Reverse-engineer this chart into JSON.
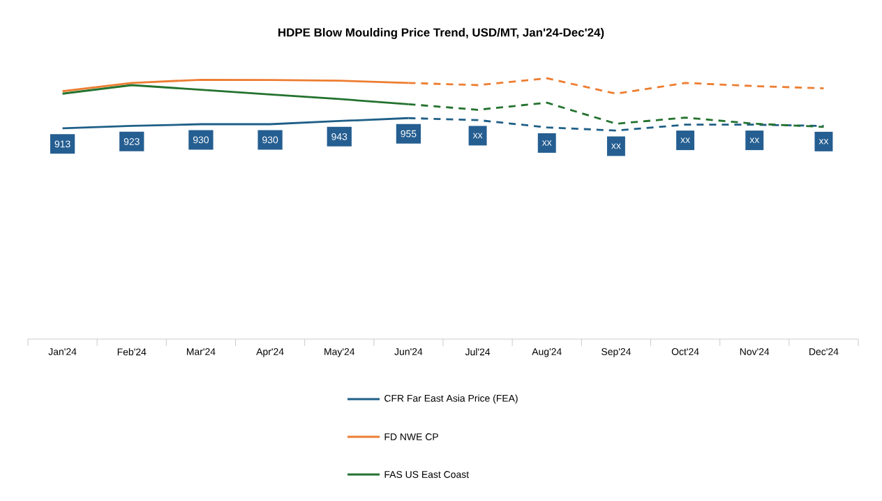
{
  "chart_data": {
    "type": "line",
    "title": "HDPE Blow Moulding Price Trend, USD/MT, Jan'24-Dec'24)",
    "categories": [
      "Jan'24",
      "Feb'24",
      "Mar'24",
      "Apr'24",
      "May'24",
      "Jun'24",
      "Jul'24",
      "Aug'24",
      "Sep'24",
      "Oct'24",
      "Nov'24",
      "Dec'24"
    ],
    "series": [
      {
        "name": "CFR Far East Asia Price (FEA)",
        "color": "#1f5f87",
        "line_style": "solid",
        "values": [
          913,
          923,
          930,
          930,
          943,
          955,
          null,
          null,
          null,
          null,
          null,
          null
        ],
        "value_labels": [
          "913",
          "923",
          "930",
          "930",
          "943",
          "955",
          null,
          null,
          null,
          null,
          null,
          null
        ]
      },
      {
        "color": "#1f5f87",
        "line_style": "dashed",
        "values": [
          null,
          null,
          null,
          null,
          null,
          955,
          947,
          917,
          904,
          928,
          928,
          923
        ],
        "value_labels": [
          null,
          null,
          null,
          null,
          null,
          null,
          "xx",
          "xx",
          "xx",
          "xx",
          "xx",
          "xx"
        ]
      },
      {
        "name": "FD NWE CP",
        "color": "#ed7d31",
        "line_style": "solid",
        "values": [
          1065,
          1099,
          1112,
          1111,
          1108,
          1099,
          null,
          null,
          null,
          null,
          null,
          null
        ]
      },
      {
        "color": "#ed7d31",
        "line_style": "dashed",
        "values": [
          null,
          null,
          null,
          null,
          null,
          1099,
          1090,
          1118,
          1055,
          1099,
          1086,
          1077
        ]
      },
      {
        "name": "FAS US East Coast",
        "color": "#23722e",
        "line_style": "solid",
        "values": [
          1055,
          1090,
          1071,
          1052,
          1033,
          1012,
          null,
          null,
          null,
          null,
          null,
          null
        ]
      },
      {
        "color": "#23722e",
        "line_style": "dashed",
        "values": [
          null,
          null,
          null,
          null,
          null,
          1012,
          989,
          1018,
          932,
          957,
          932,
          919
        ]
      }
    ],
    "tick_labels": "x",
    "legend": "bottom",
    "grid": false
  }
}
